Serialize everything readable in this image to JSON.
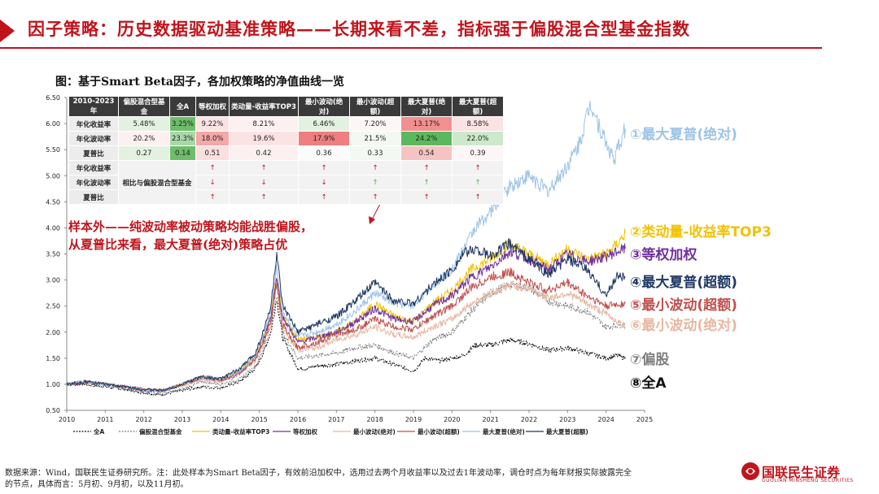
{
  "title": "因子策略：历史数据驱动基准策略——长期来看不差，指标强于偏股混合型基金指数",
  "figure_caption": "图：基于Smart Beta因子，各加权策略的净值曲线一览",
  "callout": [
    "样本外——纯波动率被动策略均能战胜偏股，",
    "从夏普比来看，最大夏普(绝对)策略占优"
  ],
  "table": {
    "header": [
      "2010-2023年",
      "偏股混合型基金",
      "全A",
      "等权加权",
      "类动量-收益率TOP3",
      "最小波动(绝对)",
      "最小波动(超额)",
      "最大夏普(绝对)",
      "最大夏普(超额)"
    ],
    "rows": [
      {
        "label": "年化收益率",
        "cells": [
          "5.48%",
          "3.25%",
          "9.22%",
          "8.21%",
          "6.46%",
          "7.20%",
          "13.17%",
          "8.58%"
        ],
        "colors": [
          "#e3f1e1",
          "#6dbd6b",
          "#fbe3e3",
          "#fdf0f0",
          "#e3f1e1",
          "#fdf6f6",
          "#f28f8f",
          "#fbe3e3"
        ]
      },
      {
        "label": "年化波动率",
        "cells": [
          "20.2%",
          "23.3%",
          "18.0%",
          "19.6%",
          "17.9%",
          "21.5%",
          "24.2%",
          "22.0%"
        ],
        "colors": [
          "#fdf0f0",
          "#a9d8a8",
          "#f4a8a8",
          "#fbe3e3",
          "#ef7e7e",
          "#f3f9f2",
          "#5cb85c",
          "#cde9cc"
        ]
      },
      {
        "label": "夏普比",
        "cells": [
          "0.27",
          "0.14",
          "0.51",
          "0.42",
          "0.36",
          "0.33",
          "0.54",
          "0.39"
        ],
        "colors": [
          "#e3f1e1",
          "#6dbd6b",
          "#fbdede",
          "#fdf0f0",
          "#fbfbfb",
          "#f3f9f2",
          "#f6c3c3",
          "#fdf6f6"
        ]
      }
    ],
    "compare_label": "相比与偏股混合型基金",
    "compare_rows": [
      {
        "label": "年化收益率",
        "arrows": [
          "↑",
          "↑",
          "↑",
          "↑",
          "↑",
          "↑"
        ],
        "colors": [
          "#c0141c",
          "#c0141c",
          "#c0141c",
          "#c0141c",
          "#c0141c",
          "#c0141c"
        ]
      },
      {
        "label": "年化波动率",
        "arrows": [
          "↓",
          "↓",
          "↓",
          "↑",
          "↑",
          "↑"
        ],
        "colors": [
          "#c0141c",
          "#c0141c",
          "#c0141c",
          "#4caf50",
          "#4caf50",
          "#4caf50"
        ]
      },
      {
        "label": "夏普比",
        "arrows": [
          "↑",
          "↑",
          "↑",
          "↑",
          "↑",
          "↑"
        ],
        "colors": [
          "#c0141c",
          "#c0141c",
          "#c0141c",
          "#c0141c",
          "#c0141c",
          "#c0141c"
        ]
      }
    ]
  },
  "right_labels": [
    {
      "text": "①最大夏普(绝对)",
      "color": "#9dc3e6"
    },
    {
      "text": "②类动量-收益率TOP3",
      "color": "#f2c200"
    },
    {
      "text": "③等权加权",
      "color": "#7030a0"
    },
    {
      "text": "④最大夏普(超额)",
      "color": "#1f3864"
    },
    {
      "text": "⑤最小波动(超额)",
      "color": "#c0504d"
    },
    {
      "text": "⑥最小波动(绝对)",
      "color": "#e6b8a2"
    },
    {
      "text": "⑦偏股",
      "color": "#7f7f7f"
    },
    {
      "text": "⑧全A",
      "color": "#111111"
    }
  ],
  "footnote": [
    "数据来源：Wind，国联民生证券研究所。注：此处样本为Smart Beta因子，有效前沿加权中，选用过去两个月收益率以及过去1年波动率，调仓时点为每年财报实际披露完全",
    "的节点，具体而言：5月初、9月初，以及11月初。"
  ],
  "logo": {
    "cn": "国联民生证券",
    "en": "GUOLIAN MINSHENG SECURITIES"
  },
  "chart_data": {
    "type": "line",
    "title": "",
    "xlabel": "",
    "ylabel": "",
    "xlim": [
      2010,
      2025
    ],
    "ylim": [
      0.5,
      6.5
    ],
    "xticks": [
      "2010",
      "2011",
      "2012",
      "2013",
      "2014",
      "2015",
      "2016",
      "2017",
      "2018",
      "2019",
      "2020",
      "2021",
      "2022",
      "2023",
      "2024",
      "2025"
    ],
    "yticks": [
      "0.50",
      "1.00",
      "1.50",
      "2.00",
      "2.50",
      "3.00",
      "3.50",
      "4.00",
      "4.50",
      "5.00",
      "5.50",
      "6.00",
      "6.50"
    ],
    "legend_position": "bottom",
    "series": [
      {
        "name": "全A",
        "color": "#111111",
        "dash": true,
        "x": [
          2010,
          2010.5,
          2011,
          2011.5,
          2012,
          2012.5,
          2013,
          2013.5,
          2014,
          2014.5,
          2014.9,
          2015.1,
          2015.3,
          2015.45,
          2015.6,
          2015.8,
          2016.0,
          2016.2,
          2016.5,
          2017,
          2017.5,
          2018,
          2018.5,
          2019.0,
          2019.3,
          2019.7,
          2020.0,
          2020.3,
          2020.6,
          2021.0,
          2021.5,
          2022.0,
          2022.5,
          2023.0,
          2023.5,
          2024.0,
          2024.3,
          2024.5
        ],
        "y": [
          1.0,
          1.0,
          0.95,
          0.9,
          0.83,
          0.8,
          0.88,
          0.95,
          0.93,
          1.05,
          1.3,
          1.6,
          2.0,
          2.65,
          1.9,
          1.6,
          1.3,
          1.3,
          1.35,
          1.38,
          1.45,
          1.5,
          1.38,
          1.25,
          1.5,
          1.45,
          1.5,
          1.55,
          1.75,
          1.75,
          1.85,
          1.78,
          1.65,
          1.7,
          1.6,
          1.5,
          1.55,
          1.5
        ]
      },
      {
        "name": "偏股混合型基金",
        "color": "#7f7f7f",
        "dash": true,
        "x": [
          2010,
          2010.5,
          2011,
          2011.5,
          2012,
          2012.5,
          2013,
          2013.5,
          2014,
          2014.5,
          2014.9,
          2015.1,
          2015.3,
          2015.45,
          2015.6,
          2015.8,
          2016.0,
          2016.5,
          2017,
          2017.5,
          2018,
          2018.5,
          2019.0,
          2019.5,
          2020.0,
          2020.5,
          2021.0,
          2021.5,
          2022.0,
          2022.5,
          2023.0,
          2023.5,
          2024.0,
          2024.5
        ],
        "y": [
          1.0,
          1.05,
          1.0,
          0.92,
          0.85,
          0.83,
          0.9,
          1.05,
          1.0,
          1.1,
          1.35,
          1.65,
          2.1,
          2.75,
          2.0,
          1.75,
          1.5,
          1.55,
          1.6,
          1.7,
          1.75,
          1.6,
          1.5,
          1.85,
          2.0,
          2.4,
          2.75,
          2.9,
          2.85,
          2.6,
          2.5,
          2.4,
          2.1,
          2.15
        ]
      },
      {
        "name": "类动量-收益率TOP3",
        "color": "#f2c200",
        "dash": false,
        "x": [
          2010,
          2010.5,
          2011,
          2011.5,
          2012,
          2012.5,
          2013,
          2013.5,
          2014,
          2014.5,
          2014.9,
          2015.1,
          2015.3,
          2015.45,
          2015.6,
          2015.8,
          2016.0,
          2016.5,
          2017,
          2017.5,
          2018,
          2018.5,
          2019.0,
          2019.5,
          2020.0,
          2020.5,
          2021.0,
          2021.5,
          2022.0,
          2022.5,
          2023.0,
          2023.5,
          2024.0,
          2024.3,
          2024.5
        ],
        "y": [
          1.0,
          1.05,
          1.0,
          0.95,
          0.9,
          0.88,
          1.0,
          1.15,
          1.1,
          1.25,
          1.55,
          1.9,
          2.3,
          3.1,
          2.3,
          2.1,
          1.85,
          1.9,
          2.0,
          2.2,
          2.55,
          2.3,
          2.2,
          2.55,
          2.8,
          3.2,
          3.4,
          3.7,
          3.5,
          3.3,
          3.6,
          3.4,
          3.5,
          3.7,
          3.9
        ]
      },
      {
        "name": "等权加权",
        "color": "#7030a0",
        "dash": false,
        "x": [
          2010,
          2010.5,
          2011,
          2011.5,
          2012,
          2012.5,
          2013,
          2013.5,
          2014,
          2014.5,
          2014.9,
          2015.1,
          2015.3,
          2015.45,
          2015.6,
          2015.8,
          2016.0,
          2016.5,
          2017,
          2017.5,
          2018,
          2018.5,
          2019.0,
          2019.5,
          2020.0,
          2020.5,
          2021.0,
          2021.5,
          2022.0,
          2022.5,
          2023.0,
          2023.5,
          2024.0,
          2024.3,
          2024.5
        ],
        "y": [
          1.0,
          1.05,
          1.0,
          0.95,
          0.88,
          0.87,
          1.0,
          1.12,
          1.08,
          1.2,
          1.5,
          1.85,
          2.3,
          3.05,
          2.3,
          2.05,
          1.8,
          1.9,
          2.0,
          2.2,
          2.45,
          2.25,
          2.2,
          2.5,
          2.7,
          3.05,
          3.25,
          3.55,
          3.4,
          3.2,
          3.5,
          3.35,
          3.45,
          3.55,
          3.6
        ]
      },
      {
        "name": "最小波动(绝对)",
        "color": "#e6b8a2",
        "dash": false,
        "x": [
          2010,
          2010.5,
          2011,
          2011.5,
          2012,
          2012.5,
          2013,
          2013.5,
          2014,
          2014.5,
          2014.9,
          2015.1,
          2015.3,
          2015.45,
          2015.6,
          2015.8,
          2016.0,
          2016.5,
          2017,
          2017.5,
          2018,
          2018.5,
          2019.0,
          2019.5,
          2020.0,
          2020.5,
          2021.0,
          2021.5,
          2022.0,
          2022.5,
          2023.0,
          2023.5,
          2024.0,
          2024.5
        ],
        "y": [
          1.0,
          1.04,
          1.0,
          0.95,
          0.9,
          0.88,
          0.98,
          1.1,
          1.05,
          1.2,
          1.45,
          1.75,
          2.15,
          2.9,
          2.1,
          1.85,
          1.65,
          1.7,
          1.85,
          1.95,
          2.1,
          1.95,
          1.9,
          2.1,
          2.25,
          2.55,
          2.75,
          2.9,
          2.85,
          2.65,
          2.75,
          2.55,
          2.35,
          2.1
        ]
      },
      {
        "name": "最小波动(超额)",
        "color": "#c0504d",
        "dash": false,
        "x": [
          2010,
          2010.5,
          2011,
          2011.5,
          2012,
          2012.5,
          2013,
          2013.5,
          2014,
          2014.5,
          2014.9,
          2015.1,
          2015.3,
          2015.45,
          2015.6,
          2015.8,
          2016.0,
          2016.5,
          2017,
          2017.5,
          2018,
          2018.5,
          2019.0,
          2019.5,
          2020.0,
          2020.5,
          2021.0,
          2021.5,
          2022.0,
          2022.5,
          2023.0,
          2023.5,
          2024.0,
          2024.5
        ],
        "y": [
          1.0,
          1.04,
          1.0,
          0.96,
          0.9,
          0.88,
          1.0,
          1.12,
          1.08,
          1.22,
          1.5,
          1.8,
          2.2,
          2.95,
          2.15,
          1.9,
          1.7,
          1.8,
          1.95,
          2.05,
          2.25,
          2.1,
          2.05,
          2.3,
          2.5,
          2.85,
          3.05,
          3.15,
          2.95,
          2.8,
          2.95,
          2.7,
          2.5,
          2.55
        ]
      },
      {
        "name": "最大夏普(绝对)",
        "color": "#9dc3e6",
        "dash": false,
        "x": [
          2010,
          2010.5,
          2011,
          2011.5,
          2012,
          2012.5,
          2013,
          2013.5,
          2014,
          2014.5,
          2014.9,
          2015.1,
          2015.3,
          2015.45,
          2015.6,
          2015.8,
          2016.0,
          2016.5,
          2017,
          2017.5,
          2018,
          2018.5,
          2019.0,
          2019.5,
          2020.0,
          2020.3,
          2020.6,
          2021.0,
          2021.5,
          2022.0,
          2022.5,
          2023.0,
          2023.3,
          2023.6,
          2023.9,
          2024.2,
          2024.5
        ],
        "y": [
          1.0,
          1.05,
          1.0,
          0.95,
          0.88,
          0.87,
          1.0,
          1.15,
          1.1,
          1.25,
          1.55,
          1.9,
          2.4,
          3.25,
          2.4,
          2.15,
          1.9,
          2.0,
          2.15,
          2.4,
          2.75,
          2.55,
          2.5,
          2.9,
          3.2,
          3.6,
          4.0,
          4.3,
          4.8,
          5.0,
          4.7,
          5.2,
          5.6,
          6.4,
          5.8,
          5.3,
          5.9
        ]
      },
      {
        "name": "最大夏普(超额)",
        "color": "#1f3864",
        "dash": false,
        "x": [
          2010,
          2010.5,
          2011,
          2011.5,
          2012,
          2012.5,
          2013,
          2013.5,
          2014,
          2014.5,
          2014.9,
          2015.1,
          2015.3,
          2015.45,
          2015.6,
          2015.8,
          2016.0,
          2016.5,
          2017,
          2017.5,
          2018,
          2018.5,
          2019.0,
          2019.5,
          2020.0,
          2020.3,
          2020.6,
          2021.0,
          2021.5,
          2022.0,
          2022.5,
          2023.0,
          2023.5,
          2024.0,
          2024.3,
          2024.5
        ],
        "y": [
          1.0,
          1.05,
          1.0,
          0.95,
          0.9,
          0.88,
          1.0,
          1.15,
          1.1,
          1.3,
          1.6,
          2.0,
          2.5,
          3.5,
          2.5,
          2.25,
          2.0,
          2.15,
          2.3,
          2.6,
          2.95,
          2.6,
          2.55,
          2.9,
          3.2,
          3.5,
          3.6,
          3.45,
          3.7,
          3.4,
          3.1,
          3.4,
          3.2,
          2.7,
          3.1,
          3.05
        ]
      }
    ]
  }
}
